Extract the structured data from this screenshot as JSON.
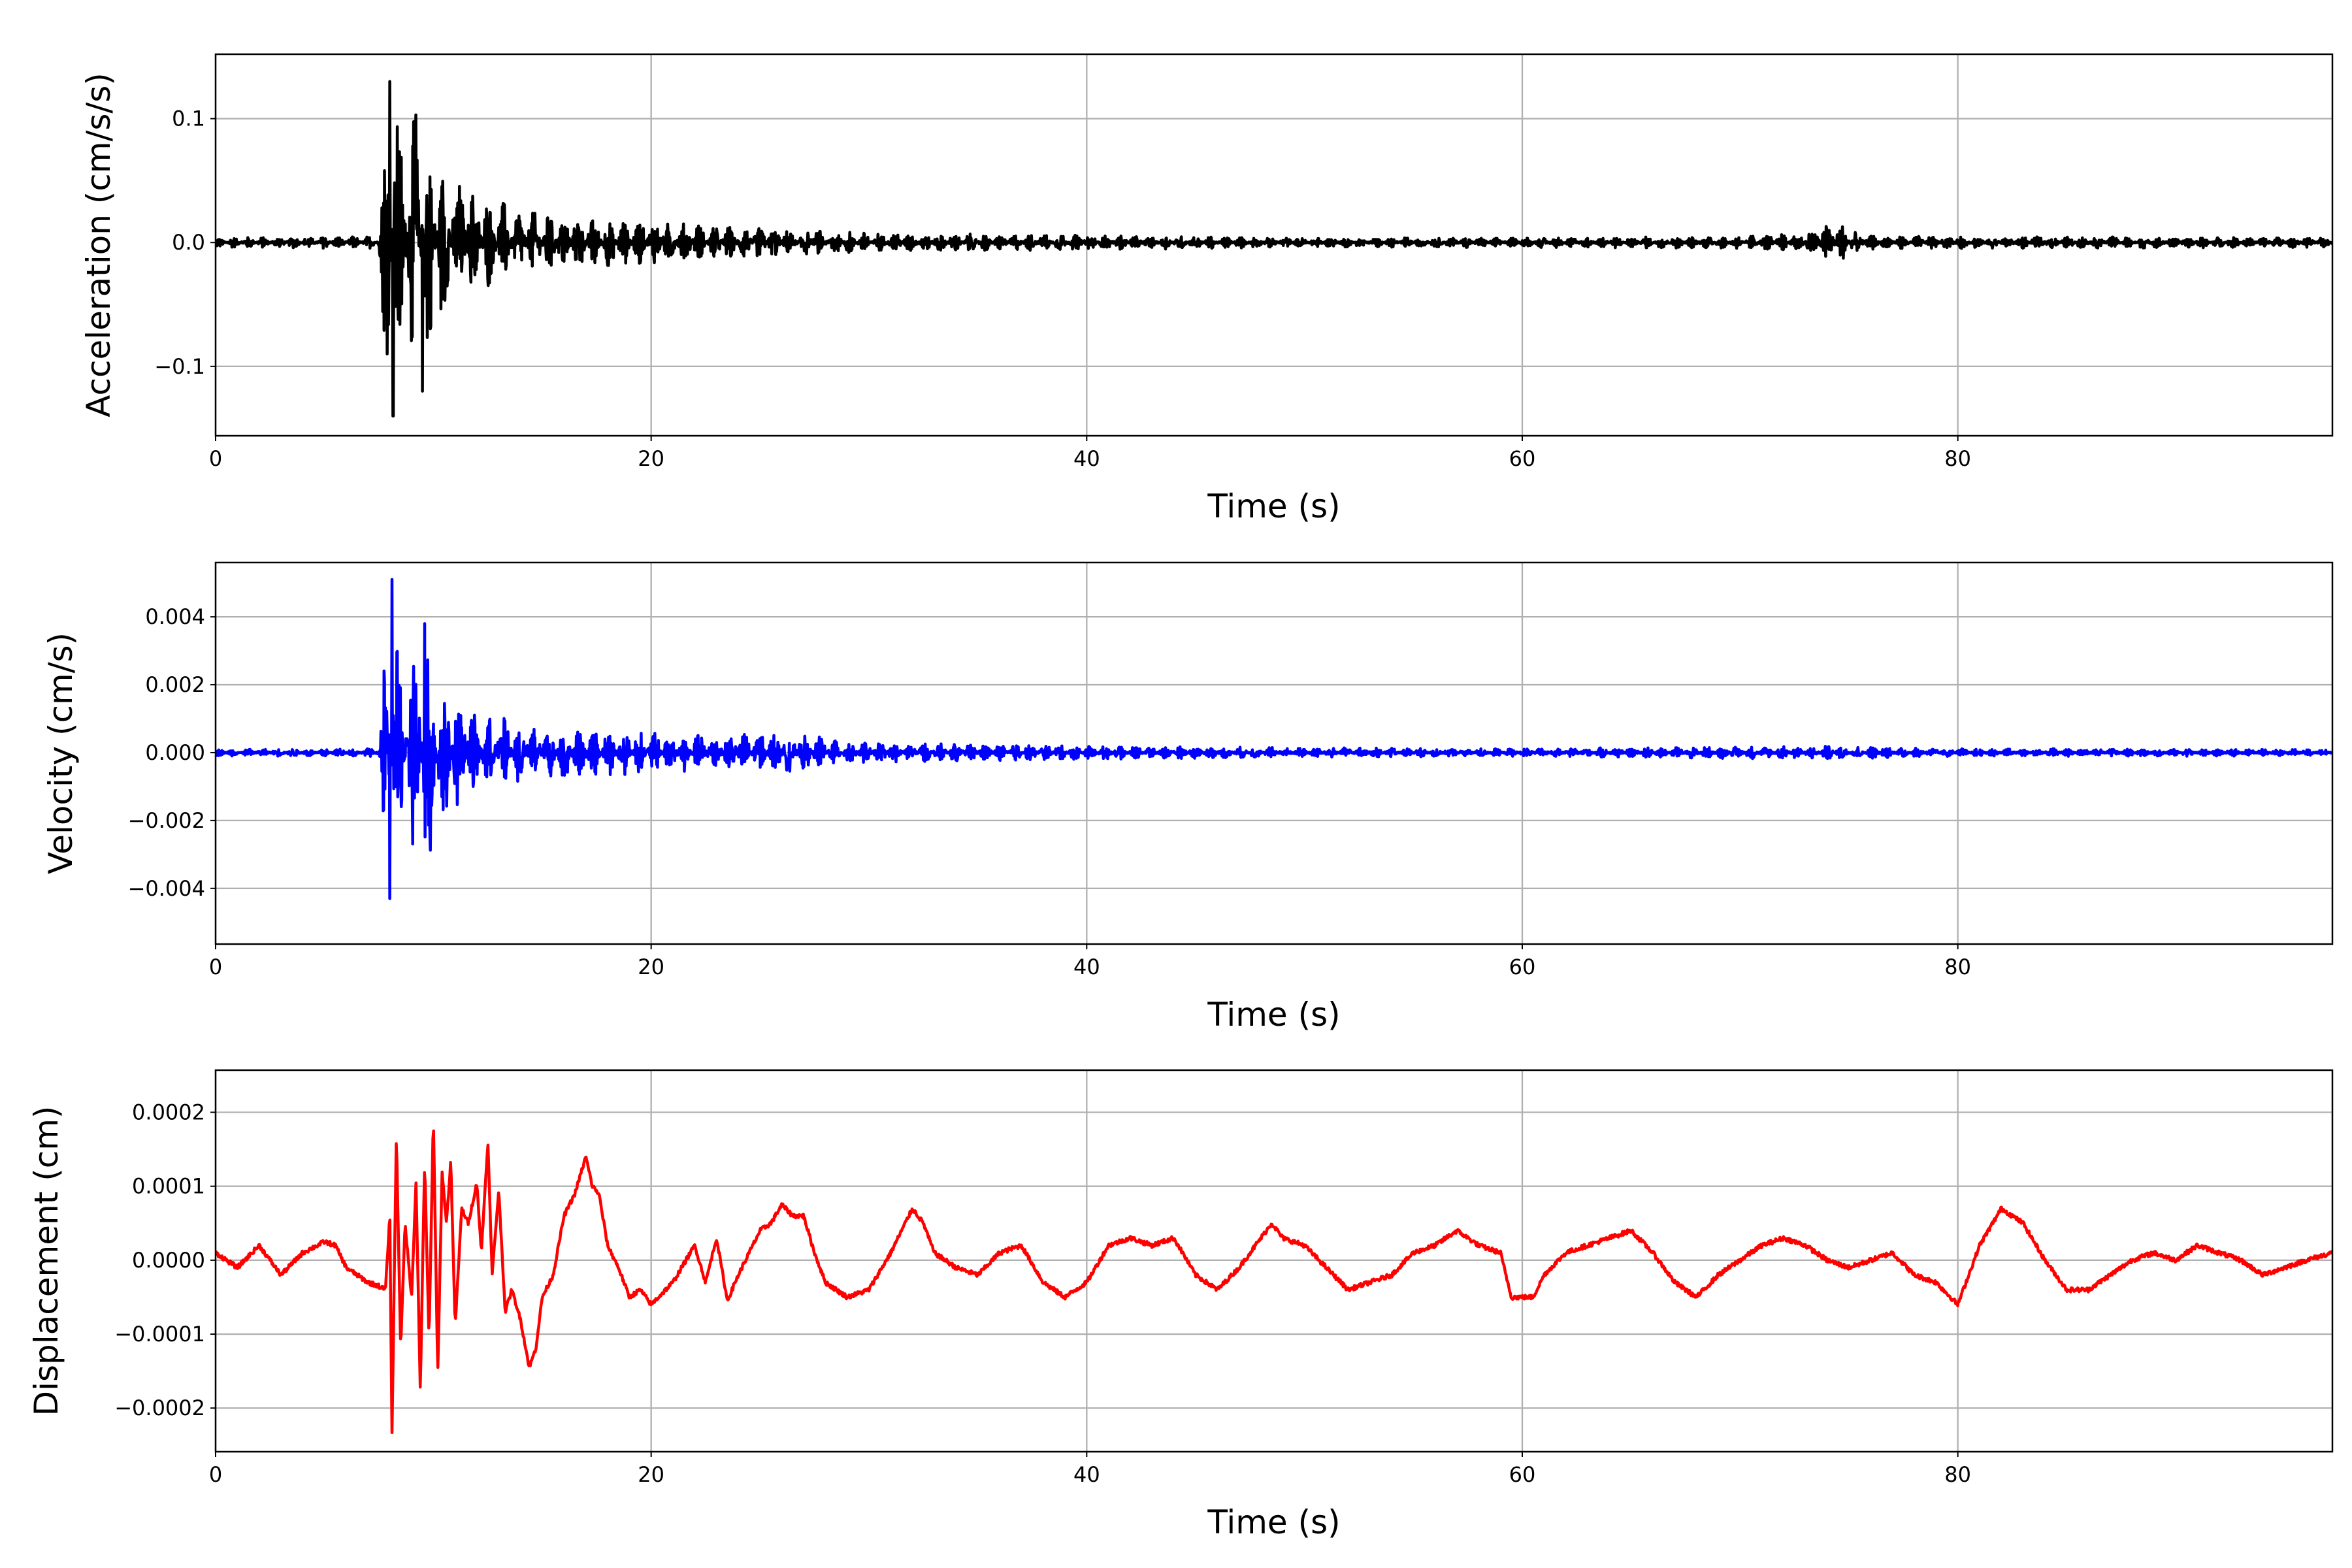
{
  "chart_data": [
    {
      "type": "line",
      "series_name": "Acceleration",
      "color": "#000000",
      "xlabel": "Time (s)",
      "ylabel": "Acceleration (cm/s/s)",
      "xlim": [
        0,
        97.2
      ],
      "ylim": [
        -0.156,
        0.152
      ],
      "xticks": [
        0,
        20,
        40,
        60,
        80
      ],
      "xtick_labels": [
        "0",
        "20",
        "40",
        "60",
        "80"
      ],
      "yticks": [
        -0.1,
        0.0,
        0.1
      ],
      "ytick_labels": [
        "−0.1",
        "0.0",
        "0.1"
      ],
      "grid": true,
      "envelope": {
        "t": [
          0,
          7.5,
          7.9,
          8.5,
          9.5,
          10.5,
          12,
          15,
          20,
          25,
          30,
          40,
          50,
          60,
          70,
          73,
          74.2,
          75.5,
          80,
          97.2
        ],
        "amp": [
          0.004,
          0.005,
          0.13,
          0.1,
          0.1,
          0.06,
          0.04,
          0.025,
          0.017,
          0.012,
          0.008,
          0.006,
          0.004,
          0.004,
          0.005,
          0.008,
          0.02,
          0.006,
          0.005,
          0.004
        ]
      },
      "peaks": [
        {
          "t": 8.0,
          "value": 0.13
        },
        {
          "t": 8.15,
          "value": -0.14
        },
        {
          "t": 9.5,
          "value": -0.12
        },
        {
          "t": 9.2,
          "value": 0.103
        }
      ]
    },
    {
      "type": "line",
      "series_name": "Velocity",
      "color": "#0000ff",
      "xlabel": "Time (s)",
      "ylabel": "Velocity (cm/s)",
      "xlim": [
        0,
        97.2
      ],
      "ylim": [
        -0.00564,
        0.0056
      ],
      "xticks": [
        0,
        20,
        40,
        60,
        80
      ],
      "xtick_labels": [
        "0",
        "20",
        "40",
        "60",
        "80"
      ],
      "yticks": [
        -0.004,
        -0.002,
        0.0,
        0.002,
        0.004
      ],
      "ytick_labels": [
        "−0.004",
        "−0.002",
        "0.000",
        "0.002",
        "0.004"
      ],
      "grid": true,
      "envelope": {
        "t": [
          0,
          7.5,
          7.9,
          8.5,
          9.6,
          11,
          12,
          15,
          20,
          26,
          30,
          40,
          50,
          60,
          74,
          80,
          97.2
        ],
        "amp": [
          0.0001,
          0.00012,
          0.0046,
          0.0028,
          0.0034,
          0.0018,
          0.0012,
          0.0008,
          0.0006,
          0.0006,
          0.0003,
          0.0002,
          0.00015,
          0.00012,
          0.0002,
          0.00012,
          0.0001
        ]
      },
      "peaks": [
        {
          "t": 8.1,
          "value": 0.0051
        },
        {
          "t": 8.0,
          "value": -0.0043
        },
        {
          "t": 9.6,
          "value": 0.0038
        }
      ]
    },
    {
      "type": "line",
      "series_name": "Displacement",
      "color": "#ff0000",
      "xlabel": "Time (s)",
      "ylabel": "Displacement (cm)",
      "xlim": [
        0,
        97.2
      ],
      "ylim": [
        -0.000259,
        0.000257
      ],
      "xticks": [
        0,
        20,
        40,
        60,
        80
      ],
      "xtick_labels": [
        "0",
        "20",
        "40",
        "60",
        "80"
      ],
      "yticks": [
        -0.0002,
        -0.0001,
        0.0,
        0.0001,
        0.0002
      ],
      "ytick_labels": [
        "−0.0002",
        "−0.0001",
        "0.0000",
        "0.0001",
        "0.0002"
      ],
      "grid": true,
      "value_scale": 0.0001,
      "t": [
        0,
        1,
        2,
        3,
        4,
        5,
        5.5,
        6,
        7,
        7.5,
        7.8,
        8,
        8.1,
        8.3,
        8.5,
        8.7,
        9,
        9.2,
        9.4,
        9.6,
        9.8,
        10,
        10.2,
        10.4,
        10.6,
        10.8,
        11,
        11.3,
        11.6,
        12,
        12.2,
        12.5,
        12.7,
        13,
        13.3,
        13.6,
        14,
        14.4,
        14.7,
        15,
        15.5,
        16,
        16.5,
        17,
        17.3,
        17.6,
        18,
        18.5,
        19,
        19.5,
        20,
        21,
        22,
        22.5,
        23,
        23.5,
        24,
        25,
        25.5,
        26,
        26.5,
        27,
        27.5,
        28,
        29,
        30,
        31,
        32,
        32.5,
        33,
        34,
        35,
        36,
        37,
        38,
        39,
        40,
        41,
        42,
        43,
        44,
        45,
        46,
        47,
        48,
        48.5,
        49,
        50,
        51,
        52,
        53,
        54,
        55,
        56,
        57,
        58,
        59,
        59.5,
        60.5,
        61,
        62,
        63,
        64,
        65,
        66,
        67,
        68,
        69,
        70,
        71,
        72,
        73,
        74,
        75,
        76,
        77,
        78,
        79,
        80,
        81,
        82,
        83,
        84,
        85,
        86,
        87,
        88,
        89,
        90,
        91,
        92,
        93,
        94,
        95,
        96,
        97.2
      ],
      "values": [
        0.1,
        -0.1,
        0.2,
        -0.2,
        0.1,
        0.25,
        0.2,
        -0.1,
        -0.3,
        -0.35,
        -0.4,
        0.6,
        -2.35,
        1.7,
        -1.2,
        0.5,
        -0.5,
        1.05,
        -1.75,
        1.35,
        -1.1,
        1.95,
        -1.55,
        1.2,
        0.5,
        1.35,
        -0.9,
        0.7,
        0.5,
        1.05,
        0.1,
        1.6,
        -0.2,
        0.95,
        -0.7,
        -0.4,
        -0.8,
        -1.45,
        -1.2,
        -0.5,
        -0.2,
        0.6,
        0.9,
        1.4,
        1.0,
        0.9,
        0.2,
        -0.1,
        -0.5,
        -0.4,
        -0.6,
        -0.3,
        0.2,
        -0.3,
        0.3,
        -0.55,
        -0.2,
        0.4,
        0.5,
        0.75,
        0.6,
        0.6,
        0.1,
        -0.3,
        -0.5,
        -0.4,
        0.1,
        0.7,
        0.5,
        0.1,
        -0.1,
        -0.2,
        0.1,
        0.2,
        -0.3,
        -0.5,
        -0.3,
        0.2,
        0.3,
        0.2,
        0.3,
        -0.2,
        -0.4,
        -0.1,
        0.3,
        0.5,
        0.3,
        0.2,
        -0.1,
        -0.4,
        -0.3,
        -0.2,
        0.1,
        0.2,
        0.4,
        0.2,
        0.1,
        -0.5,
        -0.5,
        -0.2,
        0.1,
        0.2,
        0.3,
        0.4,
        0.1,
        -0.3,
        -0.5,
        -0.2,
        0.0,
        0.2,
        0.3,
        0.2,
        0.0,
        -0.1,
        0.0,
        0.1,
        -0.2,
        -0.3,
        -0.6,
        0.2,
        0.7,
        0.5,
        0.0,
        -0.4,
        -0.4,
        -0.2,
        0.0,
        0.1,
        0.0,
        0.2,
        0.1,
        0.0,
        -0.2,
        -0.1,
        0.0,
        0.1
      ]
    }
  ]
}
